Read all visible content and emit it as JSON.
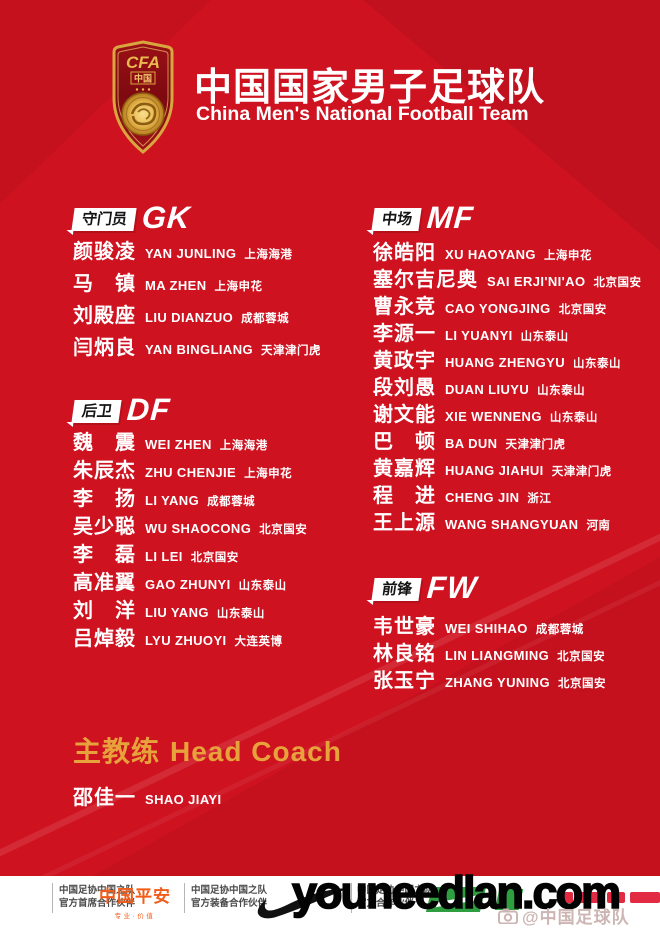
{
  "poster": {
    "title_cn": "中国国家男子足球队",
    "title_en": "China Men's National Football Team",
    "logo": {
      "acronym": "CFA",
      "country": "中国"
    }
  },
  "sections": [
    {
      "label_cn": "守门员",
      "label_en": "GK",
      "players": [
        {
          "cn": "颜骏凌",
          "en": "YAN JUNLING",
          "club": "上海海港"
        },
        {
          "cn": "马　镇",
          "en": "MA ZHEN",
          "club": "上海申花"
        },
        {
          "cn": "刘殿座",
          "en": "LIU DIANZUO",
          "club": "成都蓉城"
        },
        {
          "cn": "闫炳良",
          "en": "YAN BINGLIANG",
          "club": "天津津门虎"
        }
      ]
    },
    {
      "label_cn": "后卫",
      "label_en": "DF",
      "players": [
        {
          "cn": "魏　震",
          "en": "WEI ZHEN",
          "club": "上海海港"
        },
        {
          "cn": "朱辰杰",
          "en": "ZHU CHENJIE",
          "club": "上海申花"
        },
        {
          "cn": "李　扬",
          "en": "LI YANG",
          "club": "成都蓉城"
        },
        {
          "cn": "吴少聪",
          "en": "WU SHAOCONG",
          "club": "北京国安"
        },
        {
          "cn": "李　磊",
          "en": "LI LEI",
          "club": "北京国安"
        },
        {
          "cn": "高准翼",
          "en": "GAO ZHUNYI",
          "club": "山东泰山"
        },
        {
          "cn": "刘　洋",
          "en": "LIU YANG",
          "club": "山东泰山"
        },
        {
          "cn": "吕焯毅",
          "en": "LYU ZHUOYI",
          "club": "大连英博"
        }
      ]
    },
    {
      "label_cn": "中场",
      "label_en": "MF",
      "players": [
        {
          "cn": "徐皓阳",
          "en": "XU HAOYANG",
          "club": "上海申花"
        },
        {
          "cn": "塞尔吉尼奥",
          "en": "SAI ERJI'NI'AO",
          "club": "北京国安"
        },
        {
          "cn": "曹永竞",
          "en": "CAO YONGJING",
          "club": "北京国安"
        },
        {
          "cn": "李源一",
          "en": "LI YUANYI",
          "club": "山东泰山"
        },
        {
          "cn": "黄政宇",
          "en": "HUANG ZHENGYU",
          "club": "山东泰山"
        },
        {
          "cn": "段刘愚",
          "en": "DUAN LIUYU",
          "club": "山东泰山"
        },
        {
          "cn": "谢文能",
          "en": "XIE WENNENG",
          "club": "山东泰山"
        },
        {
          "cn": "巴　顿",
          "en": "BA DUN",
          "club": "天津津门虎"
        },
        {
          "cn": "黄嘉辉",
          "en": "HUANG JIAHUI",
          "club": "天津津门虎"
        },
        {
          "cn": "程　进",
          "en": "CHENG JIN",
          "club": "浙江"
        },
        {
          "cn": "王上源",
          "en": "WANG SHANGYUAN",
          "club": "河南"
        }
      ]
    },
    {
      "label_cn": "前锋",
      "label_en": "FW",
      "players": [
        {
          "cn": "韦世豪",
          "en": "WEI SHIHAO",
          "club": "成都蓉城"
        },
        {
          "cn": "林良铭",
          "en": "LIN LIANGMING",
          "club": "北京国安"
        },
        {
          "cn": "张玉宁",
          "en": "ZHANG YUNING",
          "club": "北京国安"
        }
      ]
    }
  ],
  "coach": {
    "label_cn": "主教练",
    "label_en": "Head Coach",
    "name_cn": "邵佳一",
    "name_en": "SHAO JIAYI"
  },
  "footer": {
    "partner_chief": {
      "line1": "中国足协中国之队",
      "line2": "官方首席合作伙伴"
    },
    "pingan": {
      "name": "中国平安",
      "slogan": "专业·价值"
    },
    "partner_equipment": {
      "line1": "中国足协中国之队",
      "line2": "官方装备合作伙伴"
    },
    "partner_official": {
      "line1": "中国足协中国之队",
      "line2": "官方合作伙伴"
    },
    "weibo_watermark": "@中国足球队"
  },
  "watermark": "youneedlan.com",
  "colors": {
    "background": "#ce1220",
    "gold": "#e8a23c",
    "pingan_orange": "#f25c19",
    "footer_bg": "#ffffff"
  }
}
